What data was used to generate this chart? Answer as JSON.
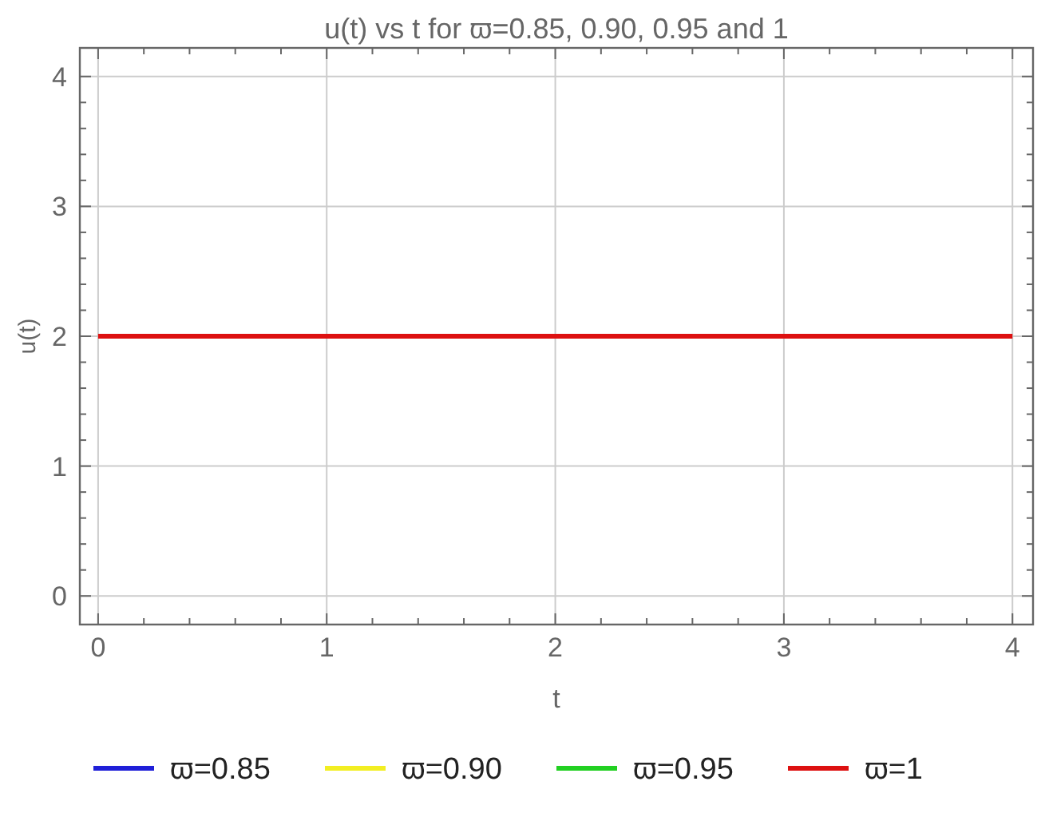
{
  "chart_data": {
    "type": "line",
    "title": "u(t) vs t for  ϖ=0.85, 0.90, 0.95 and 1",
    "xlabel": "t",
    "ylabel": "u(t)",
    "x": [
      0,
      4
    ],
    "series": [
      {
        "name": "ϖ=0.85",
        "color": "#1f1fd8",
        "values": [
          null,
          null
        ]
      },
      {
        "name": "ϖ=0.90",
        "color": "#f2ee22",
        "values": [
          null,
          null
        ]
      },
      {
        "name": "ϖ=0.95",
        "color": "#22d022",
        "values": [
          null,
          null
        ]
      },
      {
        "name": "ϖ=1",
        "color": "#dd1111",
        "values": [
          2,
          2
        ]
      }
    ],
    "xlim": [
      -0.08,
      4.09
    ],
    "ylim": [
      -0.22,
      4.22
    ],
    "xticks": [
      0,
      {
        "value": 0.2,
        "label": null
      },
      {
        "value": 0.4,
        "label": null
      },
      {
        "value": 0.6,
        "label": null
      },
      {
        "value": 0.8,
        "label": null
      },
      1,
      {
        "value": 1.2,
        "label": null
      },
      {
        "value": 1.4,
        "label": null
      },
      {
        "value": 1.6,
        "label": null
      },
      {
        "value": 1.8,
        "label": null
      },
      2,
      {
        "value": 2.2,
        "label": null
      },
      {
        "value": 2.4,
        "label": null
      },
      {
        "value": 2.6,
        "label": null
      },
      {
        "value": 2.8,
        "label": null
      },
      3,
      {
        "value": 3.2,
        "label": null
      },
      {
        "value": 3.4,
        "label": null
      },
      {
        "value": 3.6,
        "label": null
      },
      {
        "value": 3.8,
        "label": null
      },
      4
    ],
    "yticks": [
      0,
      {
        "value": 0.2,
        "label": null
      },
      {
        "value": 0.4,
        "label": null
      },
      {
        "value": 0.6,
        "label": null
      },
      {
        "value": 0.8,
        "label": null
      },
      1,
      {
        "value": 1.2,
        "label": null
      },
      {
        "value": 1.4,
        "label": null
      },
      {
        "value": 1.6,
        "label": null
      },
      {
        "value": 1.8,
        "label": null
      },
      2,
      {
        "value": 2.2,
        "label": null
      },
      {
        "value": 2.4,
        "label": null
      },
      {
        "value": 2.6,
        "label": null
      },
      {
        "value": 2.8,
        "label": null
      },
      3,
      {
        "value": 3.2,
        "label": null
      },
      {
        "value": 3.4,
        "label": null
      },
      {
        "value": 3.6,
        "label": null
      },
      {
        "value": 3.8,
        "label": null
      },
      4
    ],
    "grid": true,
    "legend": "bottom",
    "line_style": "solid"
  }
}
